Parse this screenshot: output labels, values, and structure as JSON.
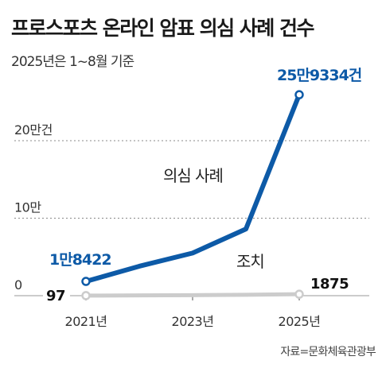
{
  "header": {
    "title": "프로스포츠 온라인 암표 의심 사례 건수",
    "subtitle": "2025년은 1~8월 기준"
  },
  "source": "자료=문화체육관광부",
  "chart_data": {
    "type": "line",
    "title": "프로스포츠 온라인 암표 의심 사례 건수",
    "subtitle": "2025년은 1~8월 기준",
    "x": [
      2021,
      2022,
      2023,
      2024,
      2025
    ],
    "x_tick_labels": [
      "2021년",
      "2023년",
      "2025년"
    ],
    "x_tick_values": [
      2021,
      2023,
      2025
    ],
    "y_tick_labels": [
      "0",
      "10만",
      "20만건"
    ],
    "y_tick_values": [
      0,
      100000,
      200000
    ],
    "ylim": [
      0,
      260000
    ],
    "grid": "horizontal dotted",
    "legend": "none",
    "series": [
      {
        "name": "의심 사례",
        "color": "#0d5aa7",
        "values": [
          18422,
          38000,
          55000,
          86000,
          259334
        ],
        "start_label": "1만8422",
        "end_label": "25만9334건"
      },
      {
        "name": "조치",
        "color": "#cccccc",
        "values": [
          97,
          400,
          700,
          1100,
          1875
        ],
        "start_label": "97",
        "end_label": "1875"
      }
    ]
  }
}
